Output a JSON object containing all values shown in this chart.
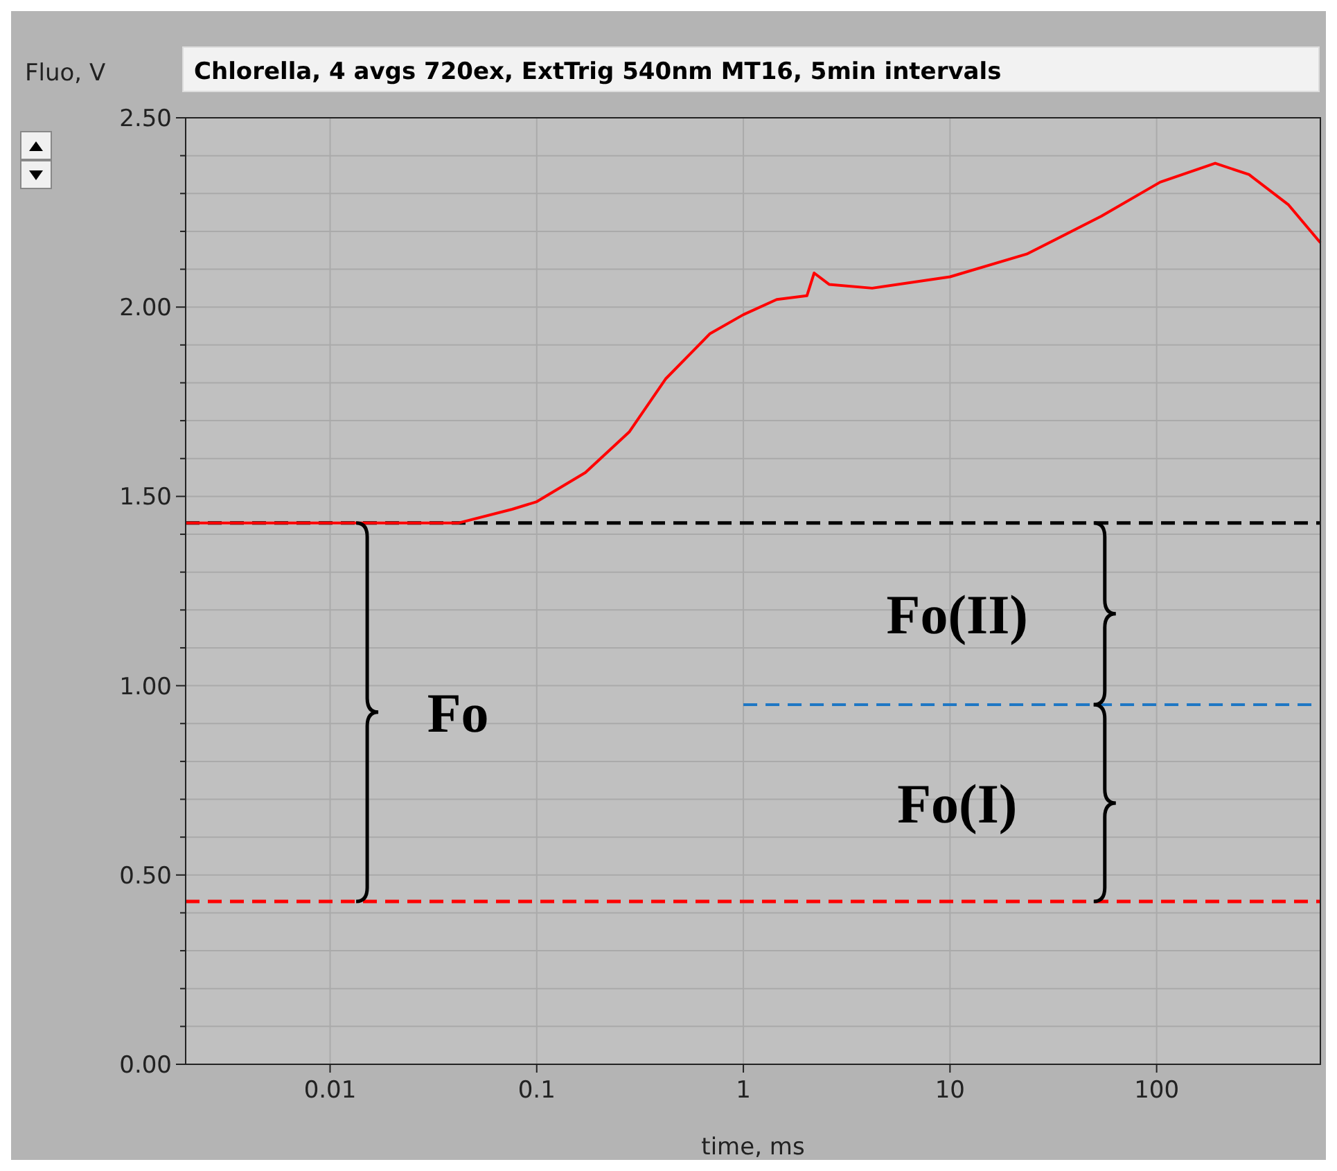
{
  "chart_data": {
    "type": "line",
    "title": "Chlorella, 4 avgs 720ex, ExtTrig 540nm MT16, 5min intervals",
    "xlabel": "time, ms",
    "ylabel": "Fluo, V",
    "log": "x",
    "grid": true,
    "xlim": [
      0.002,
      620
    ],
    "xticks": [
      0.01,
      0.1,
      1,
      10,
      100
    ],
    "ylim": [
      0,
      2.5
    ],
    "yticks": [
      {
        "value": 0,
        "label": "0.00"
      },
      {
        "value": 0.1,
        "label": null
      },
      {
        "value": 0.2,
        "label": null
      },
      {
        "value": 0.3,
        "label": null
      },
      {
        "value": 0.4,
        "label": null
      },
      {
        "value": 0.5,
        "label": "0.50"
      },
      {
        "value": 0.6,
        "label": null
      },
      {
        "value": 0.7,
        "label": null
      },
      {
        "value": 0.8,
        "label": null
      },
      {
        "value": 0.9,
        "label": null
      },
      {
        "value": 1,
        "label": "1.00"
      },
      {
        "value": 1.1,
        "label": null
      },
      {
        "value": 1.2,
        "label": null
      },
      {
        "value": 1.3,
        "label": null
      },
      {
        "value": 1.4,
        "label": null
      },
      {
        "value": 1.5,
        "label": "1.50"
      },
      {
        "value": 1.6,
        "label": null
      },
      {
        "value": 1.7,
        "label": null
      },
      {
        "value": 1.8,
        "label": null
      },
      {
        "value": 1.9,
        "label": null
      },
      {
        "value": 2,
        "label": "2.00"
      },
      {
        "value": 2.1,
        "label": null
      },
      {
        "value": 2.2,
        "label": null
      },
      {
        "value": 2.3,
        "label": null
      },
      {
        "value": 2.4,
        "label": null
      },
      {
        "value": 2.5,
        "label": "2.50"
      }
    ],
    "series": [
      {
        "color": "#ff0000",
        "line_style": "solid",
        "x": [
          0.002,
          0.042,
          0.076,
          0.1,
          0.172,
          0.28,
          0.42,
          0.69,
          1.0,
          1.45,
          2.03,
          2.2,
          2.6,
          4.2,
          10,
          23.5,
          54,
          104,
          192,
          280,
          435,
          620
        ],
        "values": [
          1.43,
          1.43,
          1.466,
          1.486,
          1.563,
          1.67,
          1.81,
          1.93,
          1.98,
          2.02,
          2.03,
          2.09,
          2.06,
          2.05,
          2.08,
          2.14,
          2.24,
          2.33,
          2.38,
          2.35,
          2.27,
          2.17
        ]
      },
      {
        "color": "#1f77c4",
        "line_style": "dashed",
        "x": [
          1,
          620
        ],
        "values": [
          0.95,
          0.95
        ]
      }
    ],
    "ref_lines": [
      {
        "axis": "y",
        "value": 1.43,
        "color": "#000000",
        "line_style": "dashed"
      },
      {
        "axis": "y",
        "value": 0.43,
        "color": "#ff0000",
        "line_style": "dashed"
      }
    ],
    "annotations": [
      "Fo",
      "Fo(II)",
      "Fo(I)"
    ]
  }
}
